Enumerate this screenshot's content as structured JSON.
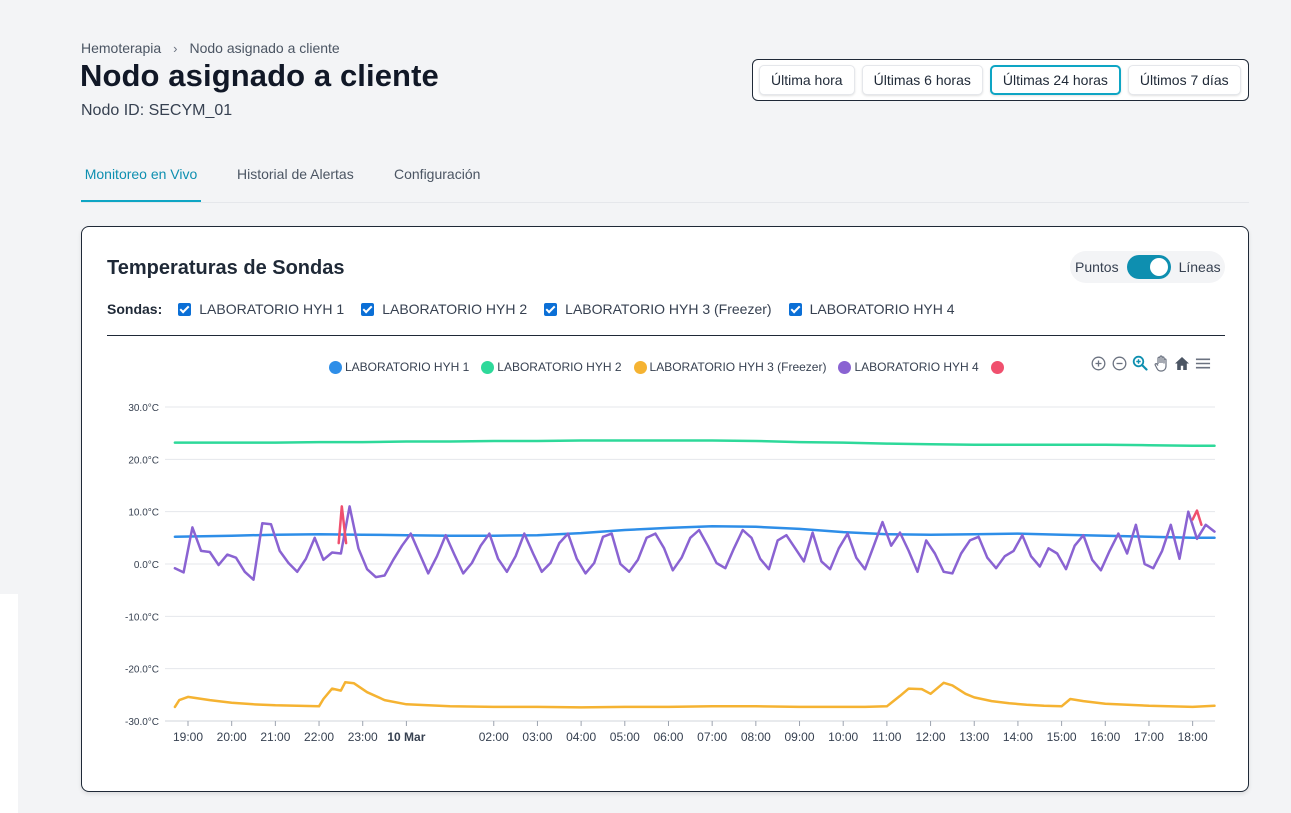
{
  "breadcrumb": {
    "parent": "Hemoterapia",
    "current": "Nodo asignado a cliente"
  },
  "header": {
    "title": "Nodo asignado a cliente",
    "node_id": "Nodo ID: SECYM_01"
  },
  "time_ranges": [
    {
      "label": "Última hora",
      "active": false
    },
    {
      "label": "Últimas 6 horas",
      "active": false
    },
    {
      "label": "Últimas 24 horas",
      "active": true
    },
    {
      "label": "Últimos 7 días",
      "active": false
    }
  ],
  "tabs": [
    {
      "label": "Monitoreo en Vivo",
      "active": true
    },
    {
      "label": "Historial de Alertas",
      "active": false
    },
    {
      "label": "Configuración",
      "active": false
    }
  ],
  "card": {
    "title": "Temperaturas de Sondas",
    "view_toggle": {
      "left": "Puntos",
      "right": "Líneas",
      "value": "Líneas"
    },
    "probes_label": "Sondas:",
    "probes": [
      {
        "label": "LABORATORIO HYH 1",
        "checked": true
      },
      {
        "label": "LABORATORIO HYH 2",
        "checked": true
      },
      {
        "label": "LABORATORIO HYH 3 (Freezer)",
        "checked": true
      },
      {
        "label": "LABORATORIO HYH 4",
        "checked": true
      }
    ]
  },
  "chart_tools": [
    "zoom-in-icon",
    "zoom-out-icon",
    "zoom-selection-icon",
    "pan-icon",
    "home-icon",
    "menu-icon"
  ],
  "colors": {
    "accent": "#0ea5c4",
    "hyh1": "#2e8ee8",
    "hyh2": "#2ed99a",
    "hyh3": "#f5b332",
    "hyh4": "#8a63d2",
    "alert": "#f0506e"
  },
  "chart_data": {
    "type": "line",
    "y_ticks": [
      "30.0°C",
      "20.0°C",
      "10.0°C",
      "0.0°C",
      "-10.0°C",
      "-20.0°C",
      "-30.0°C"
    ],
    "ylim": [
      -30,
      30
    ],
    "x_ticks": [
      {
        "label": "19:00",
        "h": 0,
        "bold": false
      },
      {
        "label": "20:00",
        "h": 1,
        "bold": false
      },
      {
        "label": "21:00",
        "h": 2,
        "bold": false
      },
      {
        "label": "22:00",
        "h": 3,
        "bold": false
      },
      {
        "label": "23:00",
        "h": 4,
        "bold": false
      },
      {
        "label": "10 Mar",
        "h": 5,
        "bold": true
      },
      {
        "label": "02:00",
        "h": 7,
        "bold": false
      },
      {
        "label": "03:00",
        "h": 8,
        "bold": false
      },
      {
        "label": "04:00",
        "h": 9,
        "bold": false
      },
      {
        "label": "05:00",
        "h": 10,
        "bold": false
      },
      {
        "label": "06:00",
        "h": 11,
        "bold": false
      },
      {
        "label": "07:00",
        "h": 12,
        "bold": false
      },
      {
        "label": "08:00",
        "h": 13,
        "bold": false
      },
      {
        "label": "09:00",
        "h": 14,
        "bold": false
      },
      {
        "label": "10:00",
        "h": 15,
        "bold": false
      },
      {
        "label": "11:00",
        "h": 16,
        "bold": false
      },
      {
        "label": "12:00",
        "h": 17,
        "bold": false
      },
      {
        "label": "13:00",
        "h": 18,
        "bold": false
      },
      {
        "label": "14:00",
        "h": 19,
        "bold": false
      },
      {
        "label": "15:00",
        "h": 20,
        "bold": false
      },
      {
        "label": "16:00",
        "h": 21,
        "bold": false
      },
      {
        "label": "17:00",
        "h": 22,
        "bold": false
      },
      {
        "label": "18:00",
        "h": 23,
        "bold": false
      }
    ],
    "grid": true,
    "legend_position": "top-center",
    "series": [
      {
        "name": "LABORATORIO HYH 1",
        "color": "#2e8ee8",
        "x": [
          -0.3,
          1,
          2,
          3,
          4,
          5,
          6,
          7,
          8,
          9,
          10,
          11,
          12,
          13,
          14,
          15,
          16,
          17,
          18,
          19,
          20,
          21,
          22,
          23,
          23.5
        ],
        "values": [
          5.2,
          5.4,
          5.6,
          5.7,
          5.6,
          5.5,
          5.4,
          5.4,
          5.5,
          5.9,
          6.5,
          6.9,
          7.2,
          7.1,
          6.7,
          6.1,
          5.7,
          5.6,
          5.7,
          5.8,
          5.6,
          5.4,
          5.2,
          5.0,
          5.0
        ]
      },
      {
        "name": "LABORATORIO HYH 2",
        "color": "#2ed99a",
        "x": [
          -0.3,
          1,
          2,
          3,
          4,
          5,
          6,
          7,
          8,
          9,
          10,
          11,
          12,
          13,
          14,
          15,
          16,
          17,
          18,
          19,
          20,
          21,
          22,
          23,
          23.5
        ],
        "values": [
          23.2,
          23.2,
          23.2,
          23.3,
          23.3,
          23.4,
          23.4,
          23.5,
          23.5,
          23.6,
          23.6,
          23.6,
          23.6,
          23.5,
          23.3,
          23.2,
          23.0,
          22.9,
          22.8,
          22.8,
          22.8,
          22.8,
          22.7,
          22.6,
          22.6
        ]
      },
      {
        "name": "LABORATORIO HYH 3 (Freezer)",
        "color": "#f5b332",
        "x": [
          -0.3,
          -0.2,
          0,
          0.5,
          1,
          1.5,
          2,
          2.5,
          3,
          3.1,
          3.3,
          3.5,
          3.6,
          3.8,
          4.1,
          4.5,
          5,
          6,
          7,
          8,
          9,
          10,
          11,
          12,
          13,
          14,
          15,
          15.5,
          16,
          16.3,
          16.5,
          16.8,
          17,
          17.3,
          17.5,
          17.8,
          18,
          18.4,
          18.8,
          19.2,
          19.6,
          20,
          20.2,
          20.5,
          21,
          22,
          23,
          23.5
        ],
        "values": [
          -27.3,
          -26,
          -25.4,
          -26,
          -26.5,
          -26.8,
          -27,
          -27.1,
          -27.2,
          -25.8,
          -23.8,
          -24.2,
          -22.6,
          -22.8,
          -24.5,
          -26,
          -26.8,
          -27.2,
          -27.3,
          -27.3,
          -27.4,
          -27.3,
          -27.3,
          -27.2,
          -27.2,
          -27.3,
          -27.3,
          -27.3,
          -27.2,
          -25.2,
          -23.8,
          -23.9,
          -24.8,
          -22.7,
          -23.2,
          -24.8,
          -25.5,
          -26.2,
          -26.6,
          -26.9,
          -27.1,
          -27.2,
          -25.8,
          -26.2,
          -26.7,
          -27.1,
          -27.3,
          -27.1
        ]
      },
      {
        "name": "LABORATORIO HYH 4",
        "color": "#8a63d2",
        "x": [
          -0.3,
          -0.1,
          0.1,
          0.3,
          0.5,
          0.7,
          0.9,
          1.1,
          1.3,
          1.5,
          1.7,
          1.9,
          2.1,
          2.3,
          2.5,
          2.7,
          2.9,
          3.1,
          3.3,
          3.5,
          3.7,
          3.9,
          4.1,
          4.3,
          4.5,
          4.7,
          4.9,
          5.1,
          5.3,
          5.5,
          5.7,
          5.9,
          6.1,
          6.3,
          6.5,
          6.7,
          6.9,
          7.1,
          7.3,
          7.5,
          7.7,
          7.9,
          8.1,
          8.3,
          8.5,
          8.7,
          8.9,
          9.1,
          9.3,
          9.5,
          9.7,
          9.9,
          10.1,
          10.3,
          10.5,
          10.7,
          10.9,
          11.1,
          11.3,
          11.5,
          11.7,
          11.9,
          12.1,
          12.3,
          12.5,
          12.7,
          12.9,
          13.1,
          13.3,
          13.5,
          13.7,
          13.9,
          14.1,
          14.3,
          14.5,
          14.7,
          14.9,
          15.1,
          15.3,
          15.5,
          15.7,
          15.9,
          16.1,
          16.3,
          16.5,
          16.7,
          16.9,
          17.1,
          17.3,
          17.5,
          17.7,
          17.9,
          18.1,
          18.3,
          18.5,
          18.7,
          18.9,
          19.1,
          19.3,
          19.5,
          19.7,
          19.9,
          20.1,
          20.3,
          20.5,
          20.7,
          20.9,
          21.1,
          21.3,
          21.5,
          21.7,
          21.9,
          22.1,
          22.3,
          22.5,
          22.7,
          22.9,
          23.1,
          23.3,
          23.5
        ],
        "values": [
          -0.8,
          -1.6,
          7.0,
          2.5,
          2.3,
          -0.2,
          1.8,
          1.2,
          -1.5,
          -3.0,
          7.8,
          7.6,
          2.5,
          0.2,
          -1.5,
          1.0,
          5.0,
          0.8,
          2.2,
          2.0,
          11.0,
          3.0,
          -1.0,
          -2.5,
          -2.2,
          0.8,
          3.5,
          5.8,
          2.0,
          -1.8,
          1.5,
          5.5,
          1.8,
          -1.8,
          0.2,
          3.5,
          5.8,
          1.0,
          -1.5,
          1.5,
          5.8,
          2.0,
          -1.5,
          0.2,
          4.0,
          5.8,
          1.0,
          -1.8,
          0.2,
          5.2,
          5.8,
          0.0,
          -1.5,
          0.8,
          5.0,
          5.8,
          3.0,
          -1.2,
          1.2,
          5.0,
          6.5,
          3.5,
          0.2,
          -0.8,
          3.0,
          6.5,
          5.0,
          1.0,
          -1.0,
          4.5,
          5.5,
          3.0,
          0.5,
          6.0,
          0.5,
          -1.0,
          3.0,
          5.8,
          1.2,
          -1.0,
          3.5,
          8.0,
          3.5,
          6.0,
          2.5,
          -1.5,
          4.5,
          2.0,
          -1.5,
          -1.8,
          2.0,
          4.5,
          5.2,
          1.2,
          -0.8,
          1.5,
          2.5,
          5.5,
          1.5,
          -0.5,
          3.0,
          2.0,
          -1.0,
          3.5,
          5.5,
          0.8,
          -1.2,
          2.5,
          5.8,
          2.0,
          7.5,
          0.0,
          -0.8,
          2.5,
          7.5,
          1.0,
          10.0,
          4.8,
          7.5,
          6.2
        ]
      },
      {
        "name": "",
        "color": "#f0506e",
        "segments": [
          {
            "x": [
              3.45,
              3.52,
              3.62
            ],
            "values": [
              4.0,
              11.0,
              4.0
            ]
          },
          {
            "x": [
              23.0,
              23.1,
              23.2
            ],
            "values": [
              8.5,
              10.2,
              7.5
            ]
          }
        ]
      }
    ]
  }
}
